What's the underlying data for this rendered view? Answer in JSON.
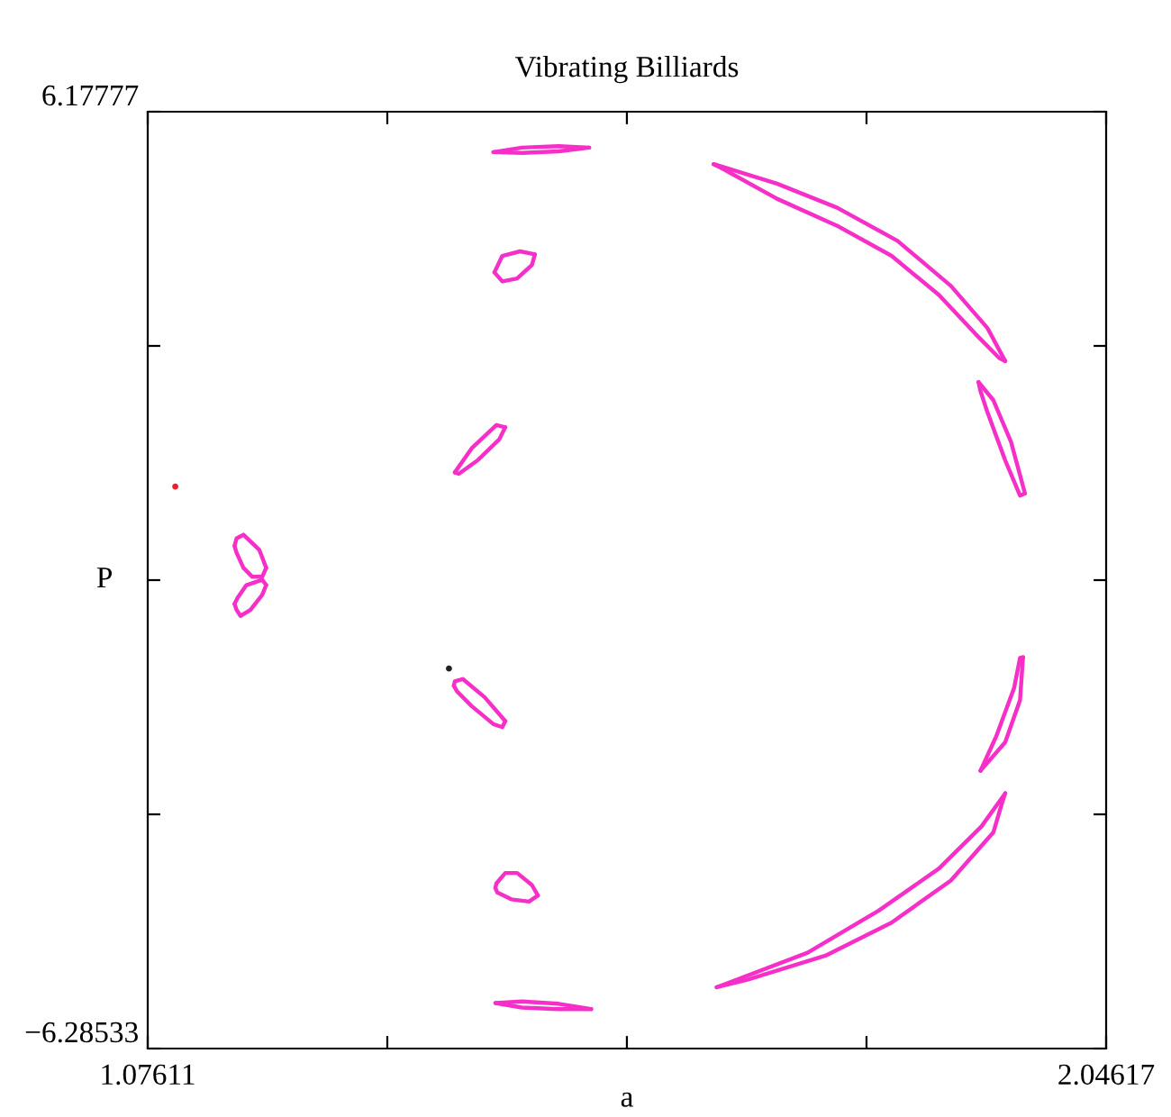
{
  "chart_data": {
    "type": "line",
    "title": "Vibrating Billiards",
    "xlabel": "a",
    "ylabel": "P",
    "xlim": [
      1.07611,
      2.04617
    ],
    "ylim": [
      -6.28533,
      6.17777
    ],
    "xticks": [
      1.07611,
      {
        "value": 1.3186,
        "label": null
      },
      {
        "value": 1.5611,
        "label": null
      },
      {
        "value": 1.8036,
        "label": null
      },
      2.04617
    ],
    "yticks": [
      {
        "value": -6.28533,
        "label": "−6.28533"
      },
      {
        "value": -3.1696,
        "label": null
      },
      {
        "value": -0.0538,
        "label": null
      },
      {
        "value": 3.062,
        "label": null
      },
      6.17777
    ],
    "series": [
      {
        "color": "#f52fc8",
        "x": [
          1.426,
          1.455,
          1.492,
          1.523
        ],
        "values": [
          5.64,
          5.7,
          5.72,
          5.7
        ]
      },
      {
        "color": "#f52fc8",
        "x": [
          1.426,
          1.455,
          1.492,
          1.523
        ],
        "values": [
          5.64,
          5.63,
          5.65,
          5.7
        ]
      },
      {
        "color": "#f52fc8",
        "x": [
          1.427,
          1.435,
          1.453,
          1.468
        ],
        "values": [
          4.04,
          4.26,
          4.32,
          4.28
        ]
      },
      {
        "color": "#f52fc8",
        "x": [
          1.427,
          1.435,
          1.45,
          1.465,
          1.468
        ],
        "values": [
          4.04,
          3.92,
          3.96,
          4.14,
          4.28
        ]
      },
      {
        "color": "#f52fc8",
        "x": [
          1.387,
          1.404,
          1.429,
          1.438
        ],
        "values": [
          1.38,
          1.7,
          2.01,
          1.98
        ]
      },
      {
        "color": "#f52fc8",
        "x": [
          1.387,
          1.391,
          1.41,
          1.432,
          1.438
        ],
        "values": [
          1.38,
          1.36,
          1.54,
          1.82,
          1.98
        ]
      },
      {
        "color": "#f52fc8",
        "x": [
          1.164,
          1.166,
          1.173,
          1.189,
          1.196
        ],
        "values": [
          0.4,
          0.5,
          0.55,
          0.35,
          0.11
        ]
      },
      {
        "color": "#f52fc8",
        "x": [
          1.164,
          1.166,
          1.173,
          1.182,
          1.192,
          1.196
        ],
        "values": [
          0.4,
          0.31,
          0.11,
          -0.01,
          -0.01,
          0.11
        ]
      },
      {
        "color": "#f52fc8",
        "x": [
          1.164,
          1.167,
          1.176,
          1.192,
          1.196
        ],
        "values": [
          -0.37,
          -0.29,
          -0.12,
          -0.05,
          -0.12
        ]
      },
      {
        "color": "#f52fc8",
        "x": [
          1.164,
          1.166,
          1.17,
          1.18,
          1.192,
          1.196
        ],
        "values": [
          -0.37,
          -0.45,
          -0.53,
          -0.45,
          -0.25,
          -0.12
        ]
      },
      {
        "color": "#f52fc8",
        "x": [
          1.386,
          1.387,
          1.395,
          1.417,
          1.438
        ],
        "values": [
          -1.46,
          -1.4,
          -1.37,
          -1.61,
          -1.93
        ]
      },
      {
        "color": "#f52fc8",
        "x": [
          1.386,
          1.389,
          1.404,
          1.426,
          1.435,
          1.438
        ],
        "values": [
          -1.46,
          -1.53,
          -1.73,
          -1.97,
          -2.01,
          -1.93
        ]
      },
      {
        "color": "#f52fc8",
        "x": [
          1.428,
          1.429,
          1.438,
          1.45,
          1.465,
          1.471
        ],
        "values": [
          -4.15,
          -4.09,
          -3.95,
          -3.95,
          -4.11,
          -4.25
        ]
      },
      {
        "color": "#f52fc8",
        "x": [
          1.428,
          1.43,
          1.444,
          1.462,
          1.471
        ],
        "values": [
          -4.15,
          -4.21,
          -4.3,
          -4.33,
          -4.25
        ]
      },
      {
        "color": "#f52fc8",
        "x": [
          1.428,
          1.455,
          1.492,
          1.525
        ],
        "values": [
          -5.68,
          -5.66,
          -5.69,
          -5.76
        ]
      },
      {
        "color": "#f52fc8",
        "x": [
          1.428,
          1.455,
          1.492,
          1.525
        ],
        "values": [
          -5.68,
          -5.74,
          -5.76,
          -5.76
        ]
      },
      {
        "color": "#f52fc8",
        "x": [
          1.649,
          1.713,
          1.774,
          1.835,
          1.889,
          1.926,
          1.944
        ],
        "values": [
          5.48,
          5.22,
          4.9,
          4.46,
          3.86,
          3.3,
          2.86
        ]
      },
      {
        "color": "#f52fc8",
        "x": [
          1.649,
          1.658,
          1.713,
          1.774,
          1.829,
          1.877,
          1.914,
          1.938,
          1.944
        ],
        "values": [
          5.48,
          5.42,
          5.02,
          4.66,
          4.26,
          3.74,
          3.22,
          2.9,
          2.86
        ]
      },
      {
        "color": "#f52fc8",
        "x": [
          1.917,
          1.932,
          1.95,
          1.964
        ],
        "values": [
          2.58,
          2.34,
          1.78,
          1.1
        ]
      },
      {
        "color": "#f52fc8",
        "x": [
          1.917,
          1.919,
          1.926,
          1.944,
          1.959,
          1.964
        ],
        "values": [
          2.58,
          2.46,
          2.18,
          1.54,
          1.07,
          1.1
        ]
      },
      {
        "color": "#f52fc8",
        "x": [
          1.919,
          1.944,
          1.959,
          1.962
        ],
        "values": [
          -2.59,
          -2.21,
          -1.65,
          -1.08
        ]
      },
      {
        "color": "#f52fc8",
        "x": [
          1.919,
          1.935,
          1.953,
          1.959,
          1.962
        ],
        "values": [
          -2.59,
          -2.13,
          -1.49,
          -1.09,
          -1.08
        ]
      },
      {
        "color": "#f52fc8",
        "x": [
          1.652,
          1.744,
          1.816,
          1.877,
          1.92,
          1.944
        ],
        "values": [
          -5.47,
          -5.01,
          -4.45,
          -3.89,
          -3.33,
          -2.89
        ]
      },
      {
        "color": "#f52fc8",
        "x": [
          1.652,
          1.683,
          1.762,
          1.829,
          1.889,
          1.932,
          1.941,
          1.944
        ],
        "values": [
          -5.47,
          -5.37,
          -5.05,
          -4.61,
          -4.05,
          -3.41,
          -3.01,
          -2.89
        ]
      },
      {
        "type": "scatter",
        "color": "#e8202a",
        "x": [
          1.104
        ],
        "values": [
          1.19
        ]
      },
      {
        "type": "scatter",
        "color": "#222222",
        "x": [
          1.381
        ],
        "values": [
          -1.23
        ]
      }
    ]
  }
}
